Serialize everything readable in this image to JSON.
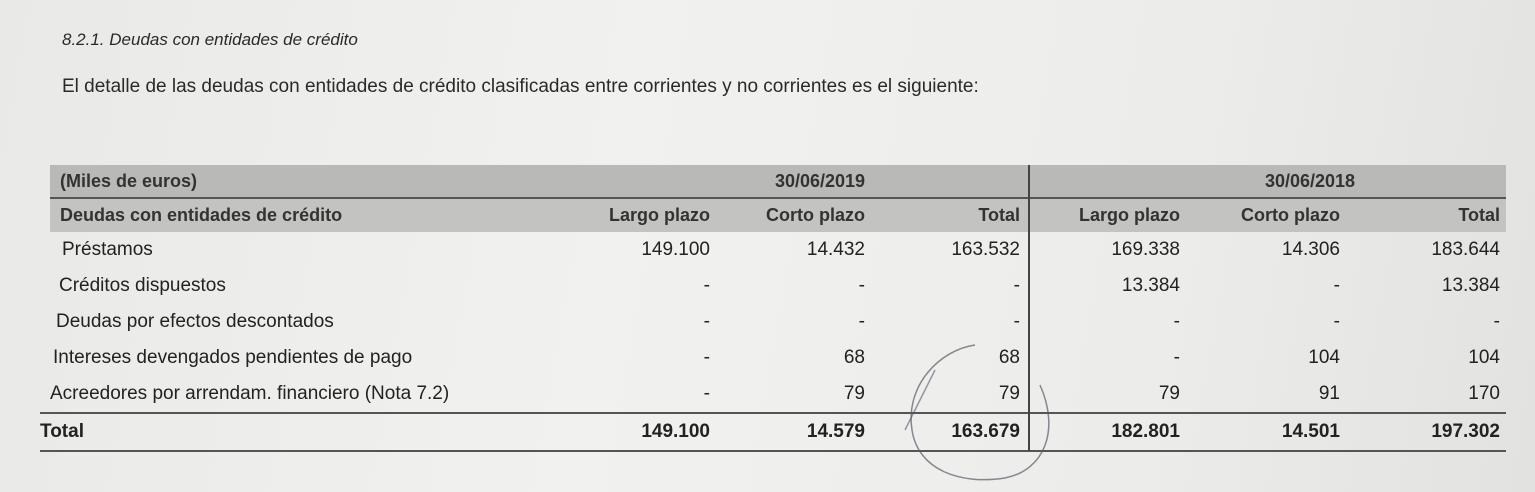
{
  "section_heading": "8.2.1. Deudas con entidades de crédito",
  "intro": "El detalle de las deudas con entidades de crédito clasificadas entre corrientes y no corrientes es el siguiente:",
  "table": {
    "unit_label": "(Miles de euros)",
    "row_header": "Deudas con entidades de crédito",
    "periods": [
      "30/06/2019",
      "30/06/2018"
    ],
    "columns": [
      "Largo plazo",
      "Corto plazo",
      "Total",
      "Largo plazo",
      "Corto plazo",
      "Total"
    ],
    "rows": [
      {
        "label": "Préstamos",
        "values": [
          "149.100",
          "14.432",
          "163.532",
          "169.338",
          "14.306",
          "183.644"
        ]
      },
      {
        "label": "Créditos dispuestos",
        "values": [
          "-",
          "-",
          "-",
          "13.384",
          "-",
          "13.384"
        ]
      },
      {
        "label": "Deudas por efectos descontados",
        "values": [
          "-",
          "-",
          "-",
          "-",
          "-",
          "-"
        ]
      },
      {
        "label": "Intereses devengados pendientes de pago",
        "values": [
          "-",
          "68",
          "68",
          "-",
          "104",
          "104"
        ]
      },
      {
        "label": "Acreedores por arrendam. financiero (Nota 7.2)",
        "values": [
          "-",
          "79",
          "79",
          "79",
          "91",
          "170"
        ]
      }
    ],
    "total": {
      "label": "Total",
      "values": [
        "149.100",
        "14.579",
        "163.679",
        "182.801",
        "14.501",
        "197.302"
      ]
    }
  }
}
